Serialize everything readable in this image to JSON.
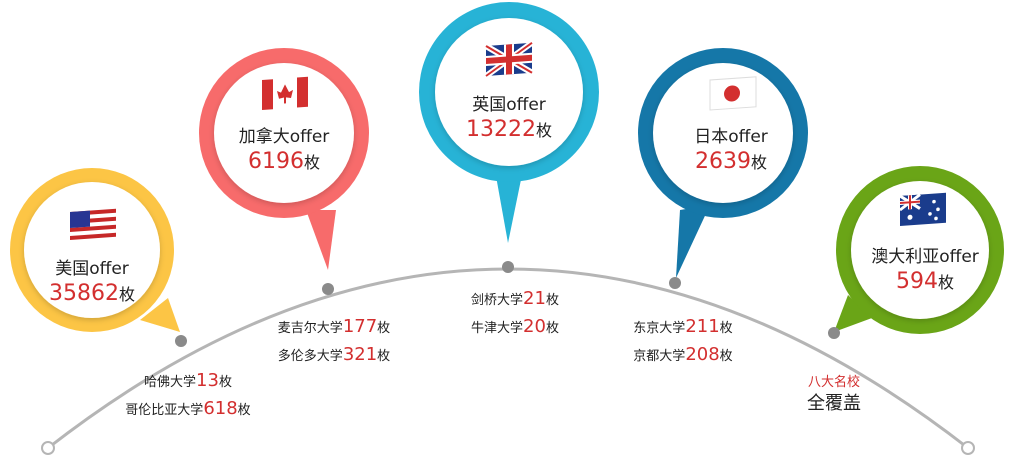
{
  "bubbles": [
    {
      "country": "美国offer",
      "count": "35862",
      "unit": "枚",
      "color": "#fcc545",
      "flag": "us-flag-icon"
    },
    {
      "country": "加拿大offer",
      "count": "6196",
      "unit": "枚",
      "color": "#f76b6b",
      "flag": "canada-flag-icon"
    },
    {
      "country": "英国offer",
      "count": "13222",
      "unit": "枚",
      "color": "#27b3d6",
      "flag": "uk-flag-icon"
    },
    {
      "country": "日本offer",
      "count": "2639",
      "unit": "枚",
      "color": "#1577a8",
      "flag": "japan-flag-icon"
    },
    {
      "country": "澳大利亚offer",
      "count": "594",
      "unit": "枚",
      "color": "#6aa517",
      "flag": "australia-flag-icon"
    }
  ],
  "schools": [
    [
      {
        "name": "哈佛大学",
        "num": "13",
        "unit": "枚"
      },
      {
        "name": "哥伦比亚大学",
        "num": "618",
        "unit": "枚"
      }
    ],
    [
      {
        "name": "麦吉尔大学",
        "num": "177",
        "unit": "枚"
      },
      {
        "name": "多伦多大学",
        "num": "321",
        "unit": "枚"
      }
    ],
    [
      {
        "name": "剑桥大学",
        "num": "21",
        "unit": "枚"
      },
      {
        "name": "牛津大学",
        "num": "20",
        "unit": "枚"
      }
    ],
    [
      {
        "name": "东京大学",
        "num": "211",
        "unit": "枚"
      },
      {
        "name": "京都大学",
        "num": "208",
        "unit": "枚"
      }
    ]
  ],
  "extra": {
    "small": "八大名校",
    "big": "全覆盖"
  },
  "colors": {
    "arc": "#b5b5b5",
    "dot": "#8a8a8a",
    "highlight": "#d32f2f"
  }
}
